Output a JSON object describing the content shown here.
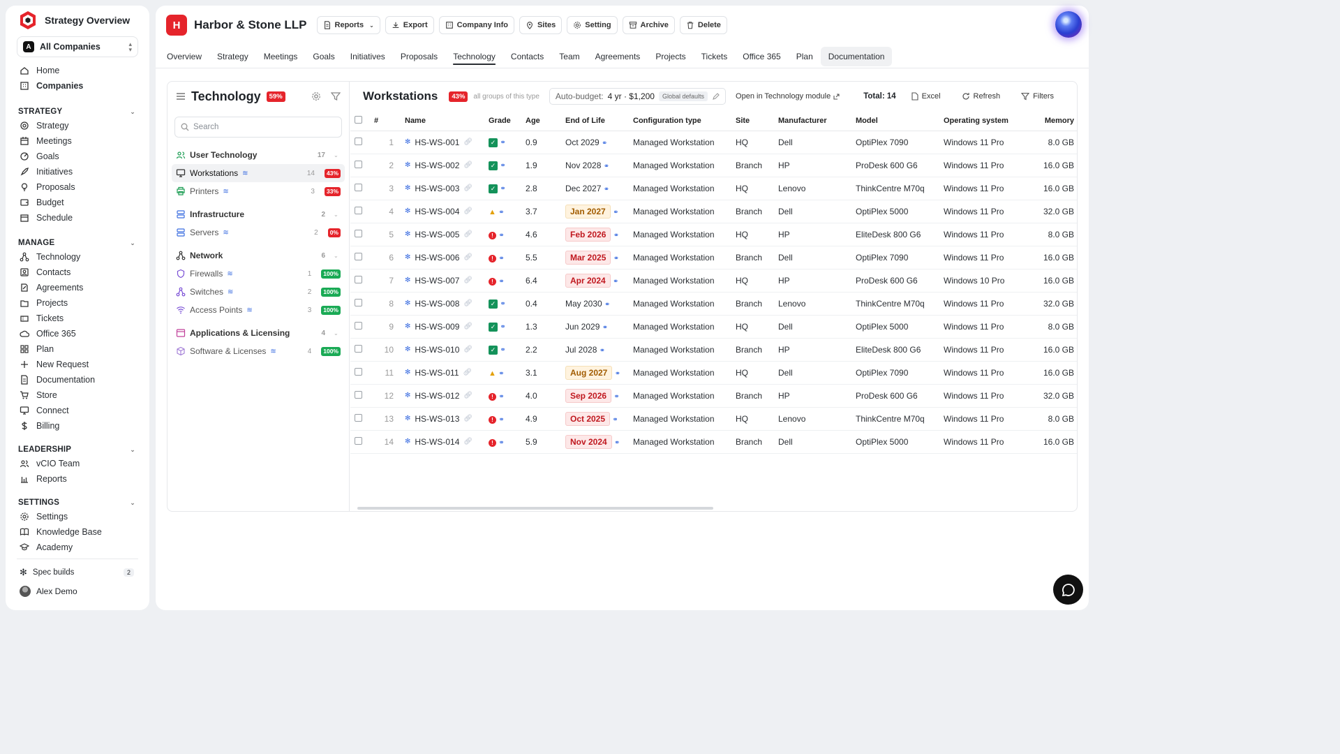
{
  "app": {
    "title": "Strategy Overview"
  },
  "sidebar": {
    "company_selector": {
      "badge": "A",
      "label": "All Companies"
    },
    "top_items": [
      {
        "label": "Home",
        "icon": "home-icon"
      },
      {
        "label": "Companies",
        "icon": "building-icon",
        "active": true
      }
    ],
    "sections": [
      {
        "title": "STRATEGY",
        "items": [
          {
            "label": "Strategy",
            "icon": "target-icon"
          },
          {
            "label": "Meetings",
            "icon": "calendar-icon"
          },
          {
            "label": "Goals",
            "icon": "goal-icon"
          },
          {
            "label": "Initiatives",
            "icon": "rocket-icon"
          },
          {
            "label": "Proposals",
            "icon": "lightbulb-icon"
          },
          {
            "label": "Budget",
            "icon": "wallet-icon"
          },
          {
            "label": "Schedule",
            "icon": "schedule-icon"
          }
        ]
      },
      {
        "title": "MANAGE",
        "items": [
          {
            "label": "Technology",
            "icon": "network-icon"
          },
          {
            "label": "Contacts",
            "icon": "contact-icon"
          },
          {
            "label": "Agreements",
            "icon": "agreement-icon"
          },
          {
            "label": "Projects",
            "icon": "folder-icon"
          },
          {
            "label": "Tickets",
            "icon": "ticket-icon"
          },
          {
            "label": "Office 365",
            "icon": "cloud-icon"
          },
          {
            "label": "Plan",
            "icon": "grid-icon"
          },
          {
            "label": "New Request",
            "icon": "plus-icon"
          },
          {
            "label": "Documentation",
            "icon": "document-icon"
          },
          {
            "label": "Store",
            "icon": "cart-icon"
          },
          {
            "label": "Connect",
            "icon": "monitor-icon"
          },
          {
            "label": "Billing",
            "icon": "dollar-icon"
          }
        ]
      },
      {
        "title": "LEADERSHIP",
        "items": [
          {
            "label": "vCIO Team",
            "icon": "team-icon"
          },
          {
            "label": "Reports",
            "icon": "bar-chart-icon"
          }
        ]
      },
      {
        "title": "SETTINGS",
        "items": [
          {
            "label": "Settings",
            "icon": "gear-icon"
          },
          {
            "label": "Knowledge Base",
            "icon": "book-icon"
          },
          {
            "label": "Academy",
            "icon": "graduation-icon"
          }
        ]
      }
    ],
    "footer": {
      "spec_builds": {
        "label": "Spec builds",
        "count": "2"
      },
      "user": {
        "name": "Alex Demo"
      }
    }
  },
  "header": {
    "badge": "H",
    "client_name": "Harbor & Stone LLP",
    "buttons": [
      {
        "label": "Reports",
        "icon": "document-icon",
        "dropdown": true
      },
      {
        "label": "Export",
        "icon": "download-icon"
      },
      {
        "label": "Company Info",
        "icon": "building-icon"
      },
      {
        "label": "Sites",
        "icon": "pin-icon"
      },
      {
        "label": "Setting",
        "icon": "gear-icon"
      },
      {
        "label": "Archive",
        "icon": "archive-icon"
      },
      {
        "label": "Delete",
        "icon": "trash-icon"
      }
    ]
  },
  "tabs": [
    {
      "label": "Overview"
    },
    {
      "label": "Strategy"
    },
    {
      "label": "Meetings"
    },
    {
      "label": "Goals"
    },
    {
      "label": "Initiatives"
    },
    {
      "label": "Proposals"
    },
    {
      "label": "Technology",
      "active": true
    },
    {
      "label": "Contacts"
    },
    {
      "label": "Team"
    },
    {
      "label": "Agreements"
    },
    {
      "label": "Projects"
    },
    {
      "label": "Tickets"
    },
    {
      "label": "Office 365"
    },
    {
      "label": "Plan"
    },
    {
      "label": "Documentation",
      "highlighted": true
    }
  ],
  "technology": {
    "title": "Technology",
    "score": "59%",
    "search_placeholder": "Search",
    "groups": [
      {
        "name": "User Technology",
        "count": "17",
        "icon": "users-icon",
        "children": [
          {
            "name": "Workstations",
            "count": "14",
            "pct": "43%",
            "status": "red",
            "icon": "monitor-icon",
            "active": true
          },
          {
            "name": "Printers",
            "count": "3",
            "pct": "33%",
            "status": "red",
            "icon": "printer-icon"
          }
        ]
      },
      {
        "name": "Infrastructure",
        "count": "2",
        "icon": "server-icon",
        "children": [
          {
            "name": "Servers",
            "count": "2",
            "pct": "0%",
            "status": "red",
            "icon": "server-icon"
          }
        ]
      },
      {
        "name": "Network",
        "count": "6",
        "icon": "network-icon",
        "children": [
          {
            "name": "Firewalls",
            "count": "1",
            "pct": "100%",
            "status": "green",
            "icon": "shield-icon"
          },
          {
            "name": "Switches",
            "count": "2",
            "pct": "100%",
            "status": "green",
            "icon": "switch-icon"
          },
          {
            "name": "Access Points",
            "count": "3",
            "pct": "100%",
            "status": "green",
            "icon": "wifi-icon"
          }
        ]
      },
      {
        "name": "Applications & Licensing",
        "count": "4",
        "icon": "app-window-icon",
        "children": [
          {
            "name": "Software & Licenses",
            "count": "4",
            "pct": "100%",
            "status": "green",
            "icon": "package-icon"
          }
        ]
      }
    ]
  },
  "workstations": {
    "title": "Workstations",
    "pct": "43%",
    "subtitle": "all groups of this type",
    "autobudget": {
      "label": "Auto-budget:",
      "value": "4 yr · $1,200",
      "tag": "Global defaults"
    },
    "open_link": "Open in Technology module",
    "total": "Total: 14",
    "actions": {
      "excel": "Excel",
      "refresh": "Refresh",
      "filters": "Filters"
    },
    "columns": [
      "#",
      "Name",
      "Grade",
      "Age",
      "End of Life",
      "Configuration type",
      "Site",
      "Manufacturer",
      "Model",
      "Operating system",
      "Memory"
    ],
    "rows": [
      {
        "n": "1",
        "name": "HS-WS-001",
        "grade": "ok",
        "age": "0.9",
        "eol": "Oct 2029",
        "eol_status": "normal",
        "config": "Managed Workstation",
        "site": "HQ",
        "mfr": "Dell",
        "model": "OptiPlex 7090",
        "os": "Windows 11 Pro",
        "mem": "8.0 GB"
      },
      {
        "n": "2",
        "name": "HS-WS-002",
        "grade": "ok",
        "age": "1.9",
        "eol": "Nov 2028",
        "eol_status": "normal",
        "config": "Managed Workstation",
        "site": "Branch",
        "mfr": "HP",
        "model": "ProDesk 600 G6",
        "os": "Windows 11 Pro",
        "mem": "16.0 GB"
      },
      {
        "n": "3",
        "name": "HS-WS-003",
        "grade": "ok",
        "age": "2.8",
        "eol": "Dec 2027",
        "eol_status": "normal",
        "config": "Managed Workstation",
        "site": "HQ",
        "mfr": "Lenovo",
        "model": "ThinkCentre M70q",
        "os": "Windows 11 Pro",
        "mem": "16.0 GB"
      },
      {
        "n": "4",
        "name": "HS-WS-004",
        "grade": "warn",
        "age": "3.7",
        "eol": "Jan 2027",
        "eol_status": "amber",
        "config": "Managed Workstation",
        "site": "Branch",
        "mfr": "Dell",
        "model": "OptiPlex 5000",
        "os": "Windows 11 Pro",
        "mem": "32.0 GB"
      },
      {
        "n": "5",
        "name": "HS-WS-005",
        "grade": "bad",
        "age": "4.6",
        "eol": "Feb 2026",
        "eol_status": "red",
        "config": "Managed Workstation",
        "site": "HQ",
        "mfr": "HP",
        "model": "EliteDesk 800 G6",
        "os": "Windows 11 Pro",
        "mem": "8.0 GB"
      },
      {
        "n": "6",
        "name": "HS-WS-006",
        "grade": "bad",
        "age": "5.5",
        "eol": "Mar 2025",
        "eol_status": "red",
        "config": "Managed Workstation",
        "site": "Branch",
        "mfr": "Dell",
        "model": "OptiPlex 7090",
        "os": "Windows 11 Pro",
        "mem": "16.0 GB"
      },
      {
        "n": "7",
        "name": "HS-WS-007",
        "grade": "bad",
        "age": "6.4",
        "eol": "Apr 2024",
        "eol_status": "red",
        "config": "Managed Workstation",
        "site": "HQ",
        "mfr": "HP",
        "model": "ProDesk 600 G6",
        "os": "Windows 10 Pro",
        "mem": "16.0 GB"
      },
      {
        "n": "8",
        "name": "HS-WS-008",
        "grade": "ok",
        "age": "0.4",
        "eol": "May 2030",
        "eol_status": "normal",
        "config": "Managed Workstation",
        "site": "Branch",
        "mfr": "Lenovo",
        "model": "ThinkCentre M70q",
        "os": "Windows 11 Pro",
        "mem": "32.0 GB"
      },
      {
        "n": "9",
        "name": "HS-WS-009",
        "grade": "ok",
        "age": "1.3",
        "eol": "Jun 2029",
        "eol_status": "normal",
        "config": "Managed Workstation",
        "site": "HQ",
        "mfr": "Dell",
        "model": "OptiPlex 5000",
        "os": "Windows 11 Pro",
        "mem": "8.0 GB"
      },
      {
        "n": "10",
        "name": "HS-WS-010",
        "grade": "ok",
        "age": "2.2",
        "eol": "Jul 2028",
        "eol_status": "normal",
        "config": "Managed Workstation",
        "site": "Branch",
        "mfr": "HP",
        "model": "EliteDesk 800 G6",
        "os": "Windows 11 Pro",
        "mem": "16.0 GB"
      },
      {
        "n": "11",
        "name": "HS-WS-011",
        "grade": "warn",
        "age": "3.1",
        "eol": "Aug 2027",
        "eol_status": "amber",
        "config": "Managed Workstation",
        "site": "HQ",
        "mfr": "Dell",
        "model": "OptiPlex 7090",
        "os": "Windows 11 Pro",
        "mem": "16.0 GB"
      },
      {
        "n": "12",
        "name": "HS-WS-012",
        "grade": "bad",
        "age": "4.0",
        "eol": "Sep 2026",
        "eol_status": "red",
        "config": "Managed Workstation",
        "site": "Branch",
        "mfr": "HP",
        "model": "ProDesk 600 G6",
        "os": "Windows 11 Pro",
        "mem": "32.0 GB"
      },
      {
        "n": "13",
        "name": "HS-WS-013",
        "grade": "bad",
        "age": "4.9",
        "eol": "Oct 2025",
        "eol_status": "red",
        "config": "Managed Workstation",
        "site": "HQ",
        "mfr": "Lenovo",
        "model": "ThinkCentre M70q",
        "os": "Windows 11 Pro",
        "mem": "8.0 GB"
      },
      {
        "n": "14",
        "name": "HS-WS-014",
        "grade": "bad",
        "age": "5.9",
        "eol": "Nov 2024",
        "eol_status": "red",
        "config": "Managed Workstation",
        "site": "Branch",
        "mfr": "Dell",
        "model": "OptiPlex 5000",
        "os": "Windows 11 Pro",
        "mem": "16.0 GB"
      }
    ]
  },
  "colors": {
    "brand_red": "#e5242b",
    "success_green": "#1aaa55",
    "link_blue": "#3b6de0"
  }
}
